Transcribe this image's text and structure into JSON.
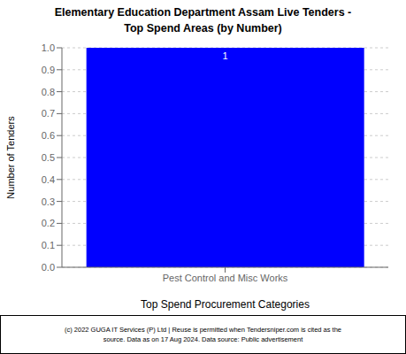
{
  "chart_data": {
    "type": "bar",
    "title": "Elementary Education Department Assam Live Tenders -\nTop Spend Areas (by Number)",
    "categories": [
      "Pest Control and Misc Works"
    ],
    "values": [
      1
    ],
    "color": "#0000FF",
    "ylabel": "Number of Tenders",
    "xlabel": "Top Spend Procurement Categories",
    "ylim": [
      0.0,
      1.0
    ],
    "yticks": [
      {
        "value": 0.0,
        "label": "0.0"
      },
      0.1,
      0.2,
      0.3,
      0.4,
      0.5,
      0.6,
      0.7,
      0.8,
      0.9,
      {
        "value": 1.0,
        "label": "1.0"
      }
    ],
    "grid": true,
    "data_labels": true,
    "annotations": [
      "(c) 2022 GUGA IT Services (P) Ltd | Reuse is permitted when Tendersniper.com is cited as the\nsource. Data as on 17 Aug 2024. Data source: Public advertisement"
    ]
  }
}
